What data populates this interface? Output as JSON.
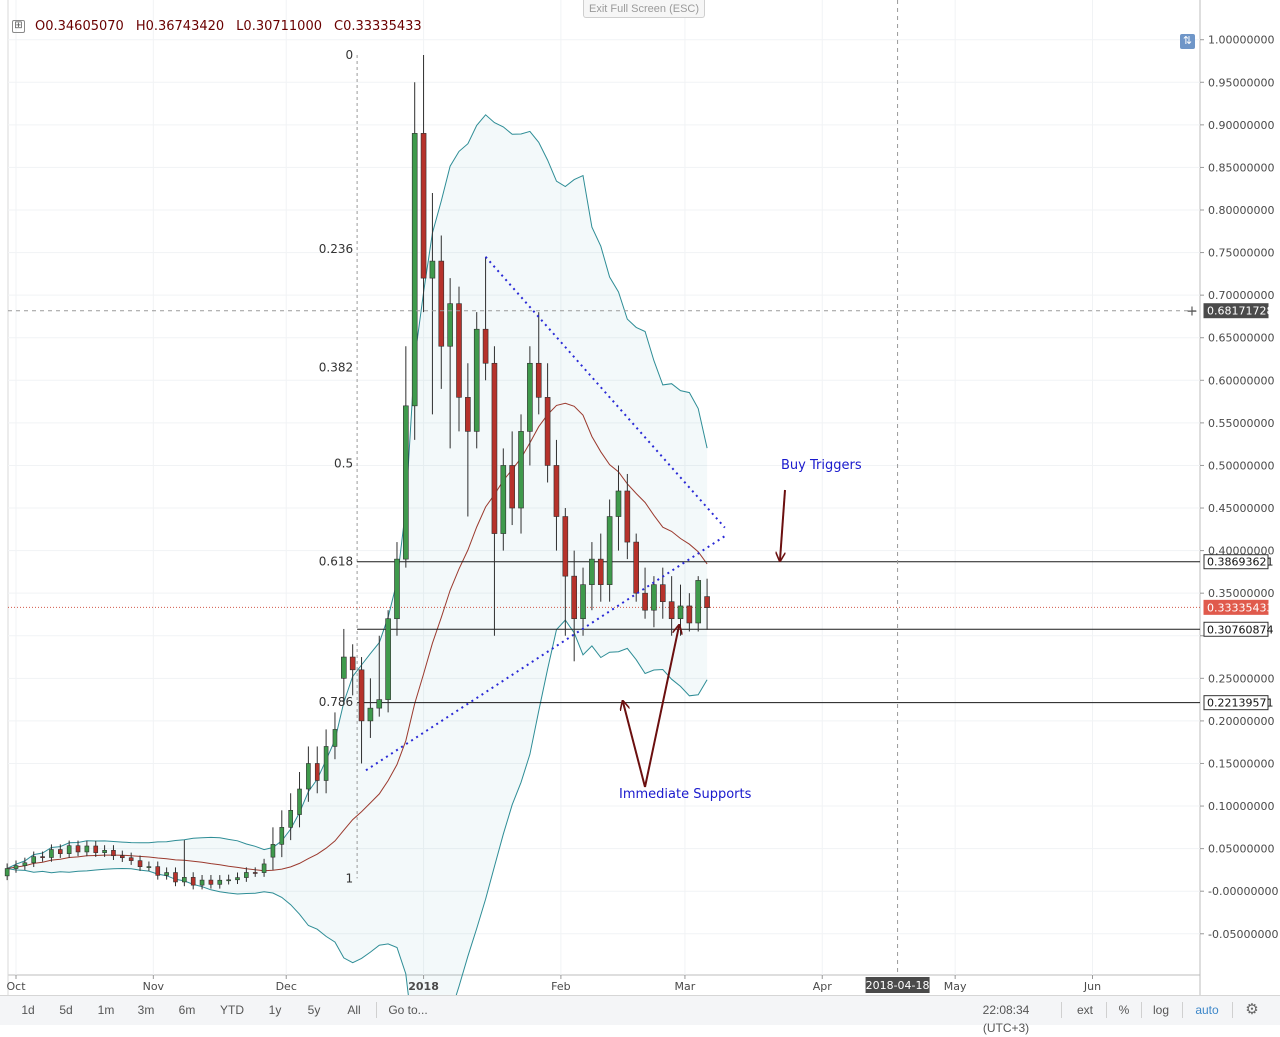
{
  "header": {
    "ohlc": {
      "open_label": "O",
      "open": "0.34605070",
      "high_label": "H",
      "high": "0.36743420",
      "low_label": "L",
      "low": "0.30711000",
      "close_label": "C",
      "close": "0.33335433"
    },
    "toggle_glyph": "⊞",
    "exit_fullscreen": "Exit Full Screen (ESC)",
    "scale_icon": "⇅"
  },
  "bottom_bar": {
    "ranges": [
      "1d",
      "5d",
      "1m",
      "3m",
      "6m",
      "YTD",
      "1y",
      "5y",
      "All"
    ],
    "goto": "Go to...",
    "time": "22:08:34 (UTC+3)",
    "ext": "ext",
    "percent": "%",
    "log": "log",
    "auto": "auto",
    "settings_icon": "gear-icon"
  },
  "chart_data": {
    "type": "candlestick",
    "y_axis": {
      "min": -0.08,
      "max": 1.03,
      "ticks": [
        1.0,
        0.95,
        0.9,
        0.85,
        0.8,
        0.75,
        0.7,
        0.65,
        0.6,
        0.55,
        0.5,
        0.45,
        0.4,
        0.35,
        0.3,
        0.25,
        0.2,
        0.15,
        0.1,
        0.05,
        -0.0,
        -0.05
      ],
      "tick_labels": [
        "1.00000000",
        "0.95000000",
        "0.90000000",
        "0.85000000",
        "0.80000000",
        "0.75000000",
        "0.70000000",
        "0.65000000",
        "0.60000000",
        "0.55000000",
        "0.50000000",
        "0.45000000",
        "0.40000000",
        "0.35000000",
        "",
        "0.25000000",
        "0.20000000",
        "0.15000000",
        "0.10000000",
        "0.05000000",
        "-0.00000000",
        "-0.05000000"
      ]
    },
    "x_axis": {
      "labels": [
        {
          "text": "Oct",
          "date": "2017-10-01",
          "bold": false
        },
        {
          "text": "Nov",
          "date": "2017-11-01",
          "bold": false
        },
        {
          "text": "Dec",
          "date": "2017-12-01",
          "bold": false
        },
        {
          "text": "2018",
          "date": "2018-01-01",
          "bold": true
        },
        {
          "text": "Feb",
          "date": "2018-02-01",
          "bold": false
        },
        {
          "text": "Mar",
          "date": "2018-03-01",
          "bold": false
        },
        {
          "text": "Apr",
          "date": "2018-04-01",
          "bold": false
        },
        {
          "text": "May",
          "date": "2018-05-01",
          "bold": false
        },
        {
          "text": "Jun",
          "date": "2018-06-01",
          "bold": false
        }
      ],
      "crosshair_date": "2018-04-18"
    },
    "price_labels": [
      {
        "value": 0.68171728,
        "text": "0.68171728",
        "kind": "crosshair"
      },
      {
        "value": 0.38693621,
        "text": "0.38693621",
        "kind": "line"
      },
      {
        "value": 0.33335433,
        "text": "0.33335433",
        "kind": "last"
      },
      {
        "value": 0.30760874,
        "text": "0.30760874",
        "kind": "line"
      },
      {
        "value": 0.22139571,
        "text": "0.22139571",
        "kind": "line"
      }
    ],
    "horizontal_lines": [
      0.38693621,
      0.30760874,
      0.22139571
    ],
    "last_price": 0.33335433,
    "fibonacci": {
      "start_date": "2017-12-17",
      "high": 0.982,
      "low": 0.015,
      "levels": [
        {
          "ratio": "0",
          "price": 0.982
        },
        {
          "ratio": "0.236",
          "price": 0.754
        },
        {
          "ratio": "0.382",
          "price": 0.615
        },
        {
          "ratio": "0.5",
          "price": 0.502
        },
        {
          "ratio": "0.618",
          "price": 0.387
        },
        {
          "ratio": "0.786",
          "price": 0.222
        },
        {
          "ratio": "1",
          "price": 0.015
        }
      ]
    },
    "triangle": {
      "upper": [
        {
          "date": "2018-01-15",
          "price": 0.745
        },
        {
          "date": "2018-03-10",
          "price": 0.427
        }
      ],
      "lower": [
        {
          "date": "2017-12-19",
          "price": 0.142
        },
        {
          "date": "2018-03-10",
          "price": 0.417
        }
      ]
    },
    "candles": [
      {
        "date": "2017-12-14",
        "o": 0.25,
        "h": 0.308,
        "l": 0.22,
        "c": 0.275
      },
      {
        "date": "2017-12-16",
        "o": 0.275,
        "h": 0.29,
        "l": 0.23,
        "c": 0.26
      },
      {
        "date": "2017-12-18",
        "o": 0.26,
        "h": 0.275,
        "l": 0.15,
        "c": 0.2
      },
      {
        "date": "2017-12-20",
        "o": 0.2,
        "h": 0.25,
        "l": 0.18,
        "c": 0.215
      },
      {
        "date": "2017-12-22",
        "o": 0.215,
        "h": 0.3,
        "l": 0.205,
        "c": 0.225
      },
      {
        "date": "2017-12-24",
        "o": 0.225,
        "h": 0.33,
        "l": 0.21,
        "c": 0.32
      },
      {
        "date": "2017-12-26",
        "o": 0.32,
        "h": 0.41,
        "l": 0.3,
        "c": 0.39
      },
      {
        "date": "2017-12-28",
        "o": 0.39,
        "h": 0.64,
        "l": 0.38,
        "c": 0.57
      },
      {
        "date": "2017-12-30",
        "o": 0.57,
        "h": 0.95,
        "l": 0.53,
        "c": 0.89
      },
      {
        "date": "2018-01-01",
        "o": 0.89,
        "h": 0.982,
        "l": 0.68,
        "c": 0.72
      },
      {
        "date": "2018-01-03",
        "o": 0.72,
        "h": 0.82,
        "l": 0.56,
        "c": 0.74
      },
      {
        "date": "2018-01-05",
        "o": 0.74,
        "h": 0.77,
        "l": 0.59,
        "c": 0.64
      },
      {
        "date": "2018-01-07",
        "o": 0.64,
        "h": 0.72,
        "l": 0.52,
        "c": 0.69
      },
      {
        "date": "2018-01-09",
        "o": 0.69,
        "h": 0.71,
        "l": 0.54,
        "c": 0.58
      },
      {
        "date": "2018-01-11",
        "o": 0.58,
        "h": 0.62,
        "l": 0.44,
        "c": 0.54
      },
      {
        "date": "2018-01-13",
        "o": 0.54,
        "h": 0.68,
        "l": 0.52,
        "c": 0.66
      },
      {
        "date": "2018-01-15",
        "o": 0.66,
        "h": 0.745,
        "l": 0.6,
        "c": 0.62
      },
      {
        "date": "2018-01-17",
        "o": 0.62,
        "h": 0.64,
        "l": 0.3,
        "c": 0.42
      },
      {
        "date": "2018-01-19",
        "o": 0.42,
        "h": 0.52,
        "l": 0.4,
        "c": 0.5
      },
      {
        "date": "2018-01-21",
        "o": 0.5,
        "h": 0.54,
        "l": 0.43,
        "c": 0.45
      },
      {
        "date": "2018-01-23",
        "o": 0.45,
        "h": 0.56,
        "l": 0.42,
        "c": 0.54
      },
      {
        "date": "2018-01-25",
        "o": 0.54,
        "h": 0.64,
        "l": 0.5,
        "c": 0.62
      },
      {
        "date": "2018-01-27",
        "o": 0.62,
        "h": 0.68,
        "l": 0.56,
        "c": 0.58
      },
      {
        "date": "2018-01-29",
        "o": 0.58,
        "h": 0.62,
        "l": 0.48,
        "c": 0.5
      },
      {
        "date": "2018-01-31",
        "o": 0.5,
        "h": 0.53,
        "l": 0.4,
        "c": 0.44
      },
      {
        "date": "2018-02-02",
        "o": 0.44,
        "h": 0.45,
        "l": 0.3,
        "c": 0.37
      },
      {
        "date": "2018-02-04",
        "o": 0.37,
        "h": 0.4,
        "l": 0.27,
        "c": 0.32
      },
      {
        "date": "2018-02-06",
        "o": 0.32,
        "h": 0.38,
        "l": 0.3,
        "c": 0.36
      },
      {
        "date": "2018-02-08",
        "o": 0.36,
        "h": 0.41,
        "l": 0.33,
        "c": 0.39
      },
      {
        "date": "2018-02-10",
        "o": 0.39,
        "h": 0.42,
        "l": 0.34,
        "c": 0.36
      },
      {
        "date": "2018-02-12",
        "o": 0.36,
        "h": 0.46,
        "l": 0.34,
        "c": 0.44
      },
      {
        "date": "2018-02-14",
        "o": 0.44,
        "h": 0.5,
        "l": 0.4,
        "c": 0.47
      },
      {
        "date": "2018-02-16",
        "o": 0.47,
        "h": 0.49,
        "l": 0.39,
        "c": 0.41
      },
      {
        "date": "2018-02-18",
        "o": 0.41,
        "h": 0.42,
        "l": 0.34,
        "c": 0.35
      },
      {
        "date": "2018-02-20",
        "o": 0.35,
        "h": 0.38,
        "l": 0.32,
        "c": 0.33
      },
      {
        "date": "2018-02-22",
        "o": 0.33,
        "h": 0.37,
        "l": 0.31,
        "c": 0.36
      },
      {
        "date": "2018-02-24",
        "o": 0.36,
        "h": 0.38,
        "l": 0.32,
        "c": 0.34
      },
      {
        "date": "2018-02-26",
        "o": 0.34,
        "h": 0.37,
        "l": 0.3,
        "c": 0.32
      },
      {
        "date": "2018-02-28",
        "o": 0.32,
        "h": 0.36,
        "l": 0.3,
        "c": 0.335
      },
      {
        "date": "2018-03-02",
        "o": 0.335,
        "h": 0.35,
        "l": 0.305,
        "c": 0.315
      },
      {
        "date": "2018-03-04",
        "o": 0.315,
        "h": 0.37,
        "l": 0.305,
        "c": 0.365
      },
      {
        "date": "2018-03-06",
        "o": 0.346,
        "h": 0.367,
        "l": 0.307,
        "c": 0.333
      }
    ]
  },
  "annotations": {
    "buy_triggers": "Buy Triggers",
    "immediate_supports": "Immediate Supports"
  }
}
